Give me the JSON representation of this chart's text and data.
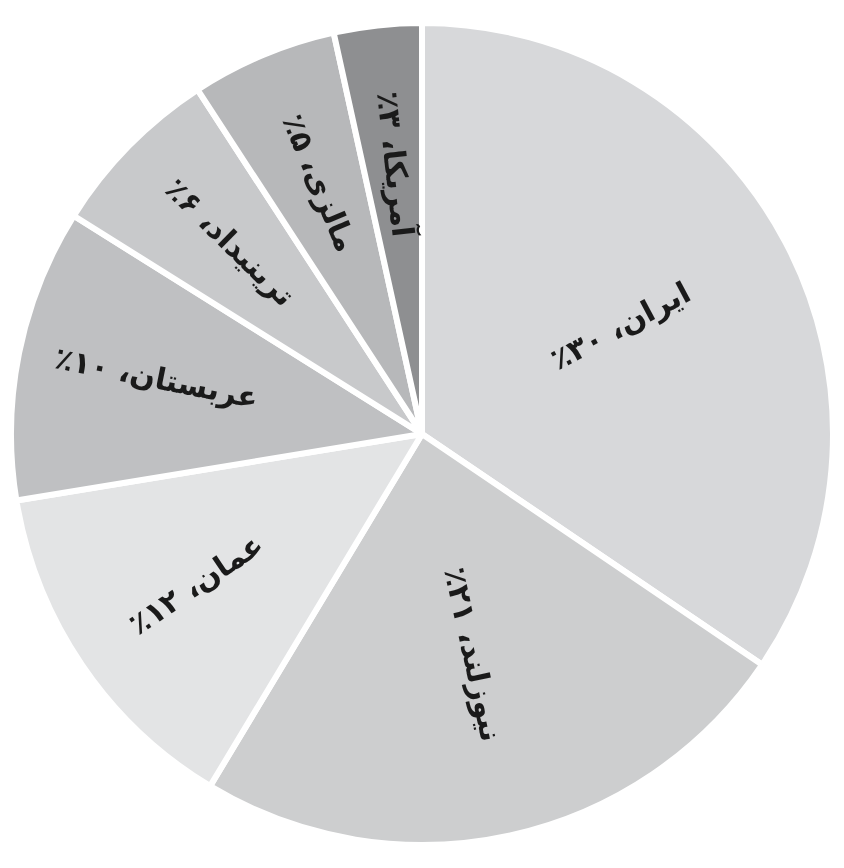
{
  "chart_data": {
    "type": "pie",
    "categories": [
      "ایران",
      "نیوزلند",
      "عمان",
      "عربستان",
      "ترینیداد",
      "مالزی",
      "آمریکا"
    ],
    "values": [
      30,
      21,
      12,
      10,
      6,
      5,
      3
    ],
    "value_labels": [
      "۳۰٪",
      "۲۱٪",
      "۱۲٪",
      "۱۰٪",
      "۶٪",
      "۵٪",
      "۳٪"
    ],
    "colors": [
      "#d7d8da",
      "#cdcecf",
      "#e3e4e5",
      "#bfc0c2",
      "#c8c9cb",
      "#b7b8ba",
      "#8e8f91"
    ],
    "legend": false
  }
}
